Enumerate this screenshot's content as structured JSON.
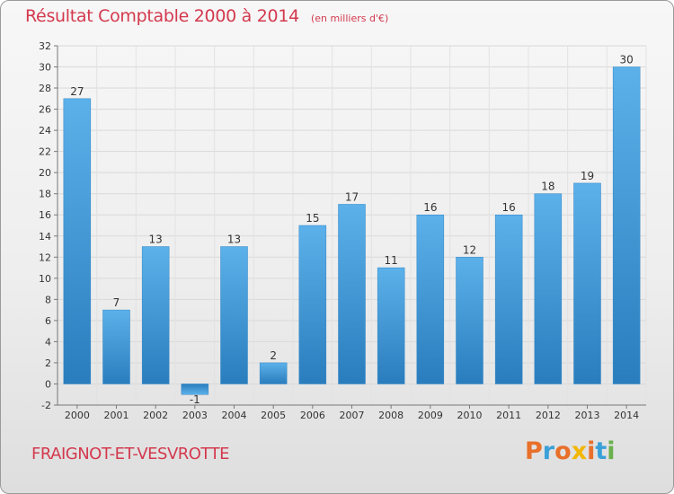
{
  "header": {
    "title": "Résultat Comptable 2000 à 2014",
    "unit": "(en milliers d'€)"
  },
  "footer": {
    "place": "FRAIGNOT-ET-VESVROTTE",
    "logo_text": "Proxiti",
    "logo_colors": [
      "#e8702a",
      "#3aa0d8",
      "#e8702a",
      "#f2b705",
      "#e8702a",
      "#3aa0d8",
      "#6ab04c"
    ]
  },
  "colors": {
    "title": "#d3394e",
    "bar_light": "#5aaee8",
    "bar_dark": "#2a7fc0",
    "grid": "#d8d8d8"
  },
  "chart_data": {
    "type": "bar",
    "title": "Résultat Comptable 2000 à 2014",
    "subtitle": "(en milliers d'€)",
    "xlabel": "",
    "ylabel": "",
    "categories": [
      "2000",
      "2001",
      "2002",
      "2003",
      "2004",
      "2005",
      "2006",
      "2007",
      "2008",
      "2009",
      "2010",
      "2011",
      "2012",
      "2013",
      "2014"
    ],
    "values": [
      27,
      7,
      13,
      -1,
      13,
      2,
      15,
      17,
      11,
      16,
      12,
      16,
      18,
      19,
      30
    ],
    "ylim": [
      -2,
      32
    ],
    "yticks": [
      -2,
      0,
      2,
      4,
      6,
      8,
      10,
      12,
      14,
      16,
      18,
      20,
      22,
      24,
      26,
      28,
      30,
      32
    ],
    "grid": true,
    "legend": "none"
  }
}
